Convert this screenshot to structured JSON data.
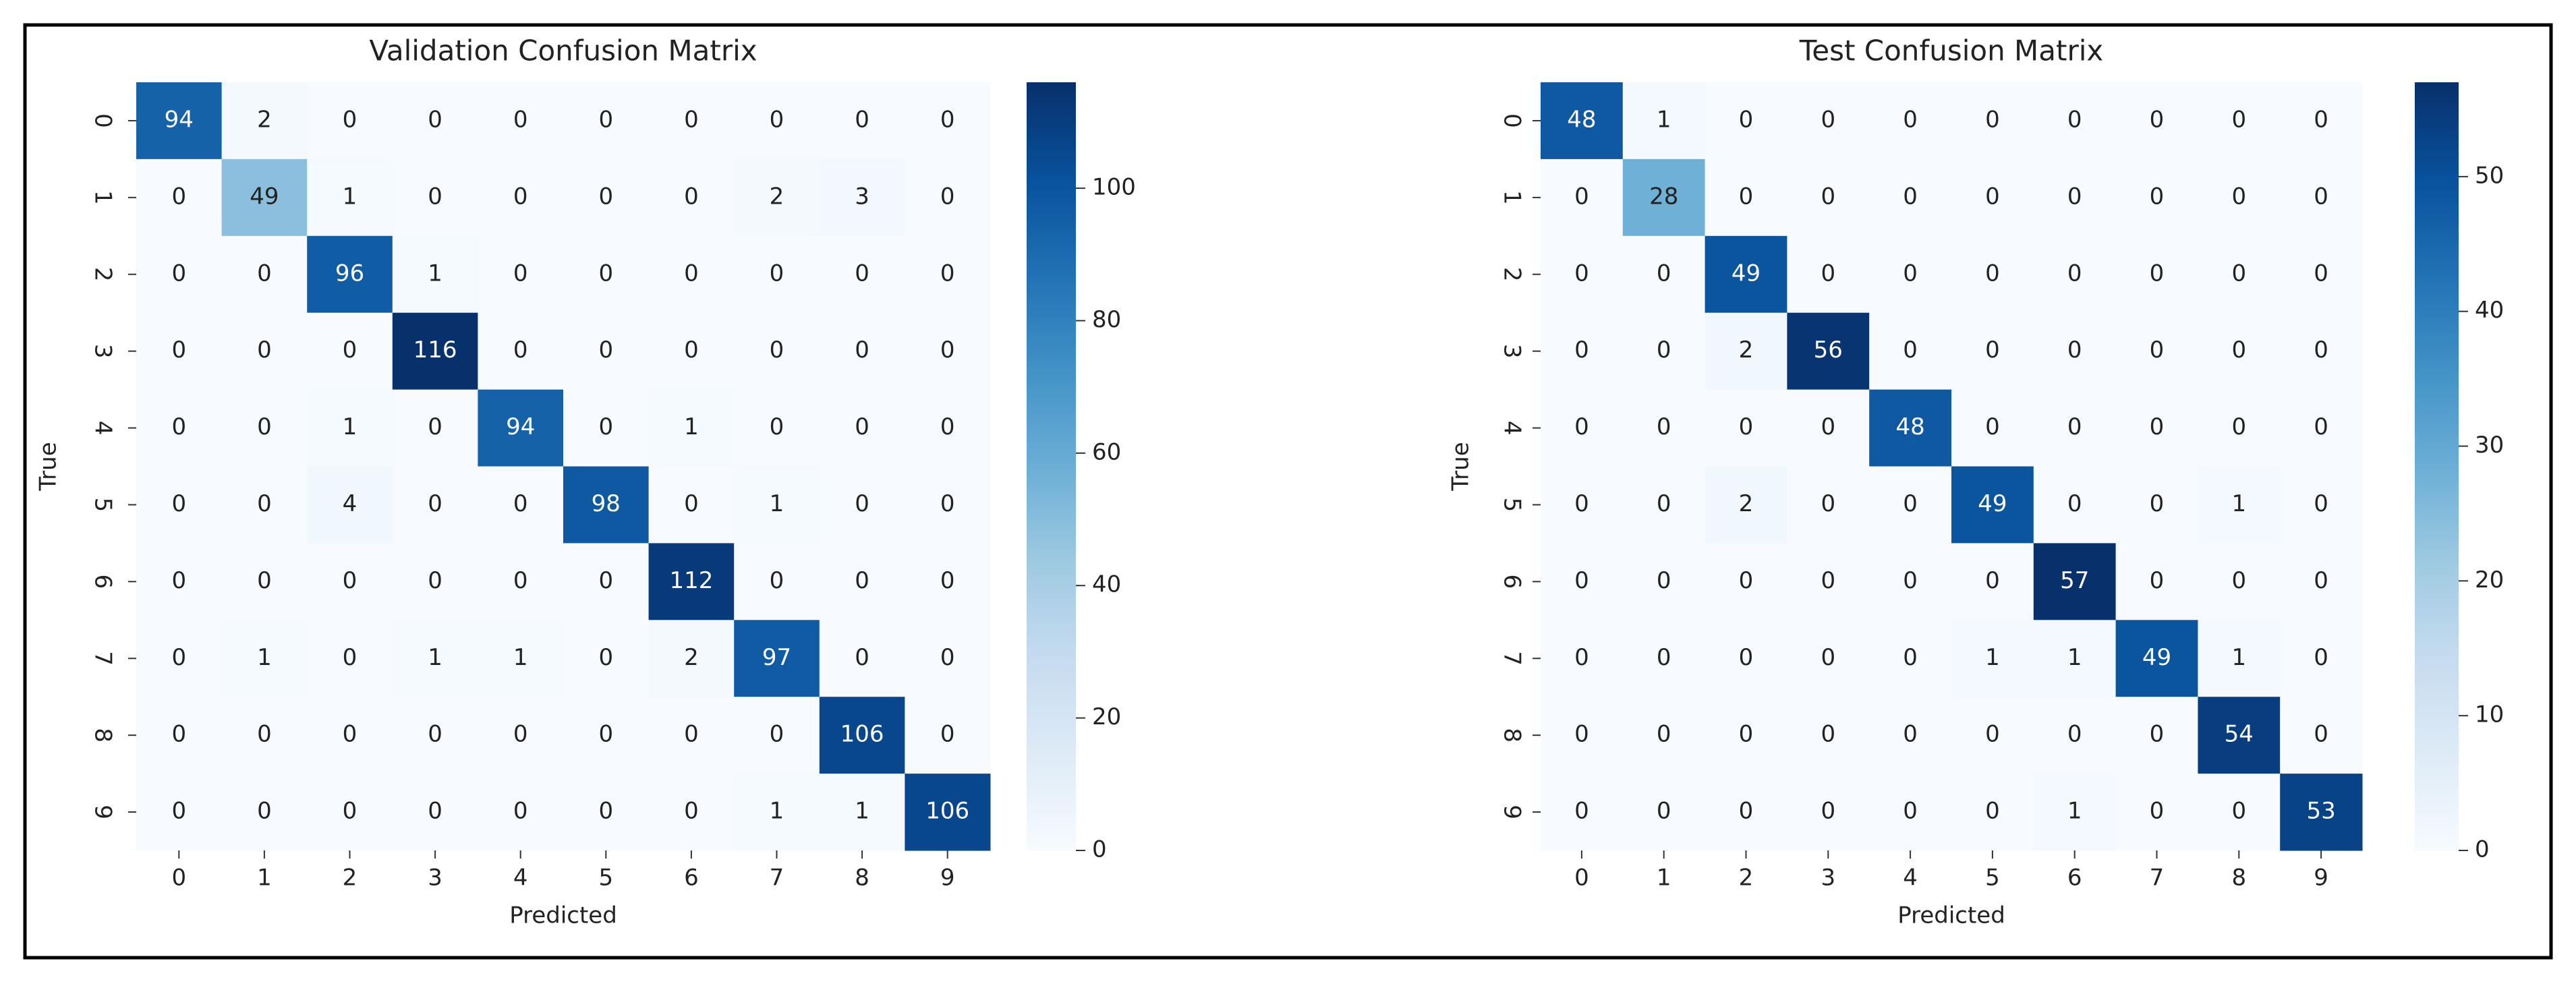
{
  "chart_data": [
    {
      "type": "heatmap",
      "title": "Validation Confusion Matrix",
      "x_label": "Predicted",
      "y_label": "True",
      "categories": [
        "0",
        "1",
        "2",
        "3",
        "4",
        "5",
        "6",
        "7",
        "8",
        "9"
      ],
      "values": [
        [
          94,
          2,
          0,
          0,
          0,
          0,
          0,
          0,
          0,
          0
        ],
        [
          0,
          49,
          1,
          0,
          0,
          0,
          0,
          2,
          3,
          0
        ],
        [
          0,
          0,
          96,
          1,
          0,
          0,
          0,
          0,
          0,
          0
        ],
        [
          0,
          0,
          0,
          116,
          0,
          0,
          0,
          0,
          0,
          0
        ],
        [
          0,
          0,
          1,
          0,
          94,
          0,
          1,
          0,
          0,
          0
        ],
        [
          0,
          0,
          4,
          0,
          0,
          98,
          0,
          1,
          0,
          0
        ],
        [
          0,
          0,
          0,
          0,
          0,
          0,
          112,
          0,
          0,
          0
        ],
        [
          0,
          1,
          0,
          1,
          1,
          0,
          2,
          97,
          0,
          0
        ],
        [
          0,
          0,
          0,
          0,
          0,
          0,
          0,
          0,
          106,
          0
        ],
        [
          0,
          0,
          0,
          0,
          0,
          0,
          0,
          1,
          1,
          106
        ]
      ],
      "zlim": [
        0,
        116
      ],
      "zticks": [
        0,
        20,
        40,
        60,
        80,
        100
      ],
      "colors": [
        "#f7fbff",
        "#deebf7",
        "#c6dbef",
        "#9ecae1",
        "#6baed6",
        "#4292c6",
        "#2171b5",
        "#08519c",
        "#08306b"
      ]
    },
    {
      "type": "heatmap",
      "title": "Test Confusion Matrix",
      "x_label": "Predicted",
      "y_label": "True",
      "categories": [
        "0",
        "1",
        "2",
        "3",
        "4",
        "5",
        "6",
        "7",
        "8",
        "9"
      ],
      "values": [
        [
          48,
          1,
          0,
          0,
          0,
          0,
          0,
          0,
          0,
          0
        ],
        [
          0,
          28,
          0,
          0,
          0,
          0,
          0,
          0,
          0,
          0
        ],
        [
          0,
          0,
          49,
          0,
          0,
          0,
          0,
          0,
          0,
          0
        ],
        [
          0,
          0,
          2,
          56,
          0,
          0,
          0,
          0,
          0,
          0
        ],
        [
          0,
          0,
          0,
          0,
          48,
          0,
          0,
          0,
          0,
          0
        ],
        [
          0,
          0,
          2,
          0,
          0,
          49,
          0,
          0,
          1,
          0
        ],
        [
          0,
          0,
          0,
          0,
          0,
          0,
          57,
          0,
          0,
          0
        ],
        [
          0,
          0,
          0,
          0,
          0,
          1,
          1,
          49,
          1,
          0
        ],
        [
          0,
          0,
          0,
          0,
          0,
          0,
          0,
          0,
          54,
          0
        ],
        [
          0,
          0,
          0,
          0,
          0,
          0,
          1,
          0,
          0,
          53
        ]
      ],
      "zlim": [
        0,
        57
      ],
      "zticks": [
        0,
        10,
        20,
        30,
        40,
        50
      ],
      "colors": [
        "#f7fbff",
        "#deebf7",
        "#c6dbef",
        "#9ecae1",
        "#6baed6",
        "#4292c6",
        "#2171b5",
        "#08519c",
        "#08306b"
      ]
    }
  ]
}
